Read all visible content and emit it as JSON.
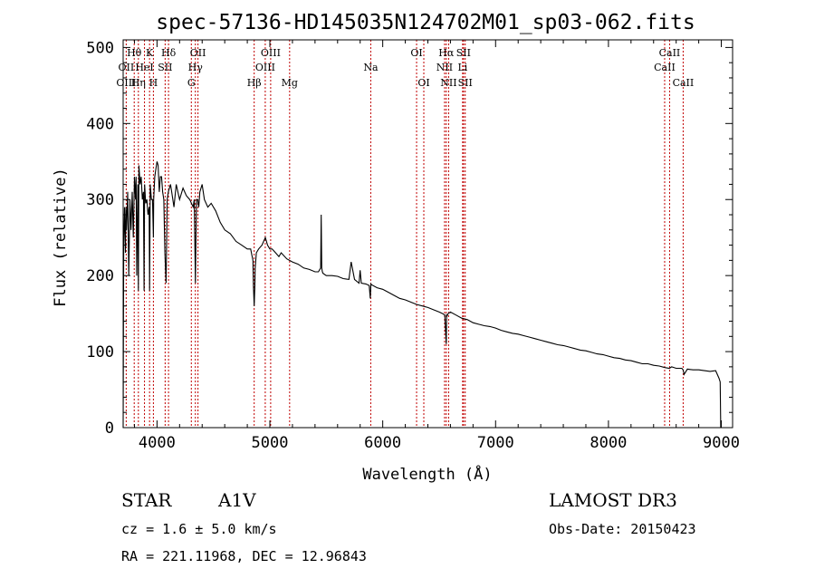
{
  "chart_data": {
    "type": "line",
    "title": "spec-57136-HD145035N124702M01_sp03-062.fits",
    "xlabel": "Wavelength (Å)",
    "ylabel": "Flux (relative)",
    "xlim": [
      3700,
      9100
    ],
    "ylim": [
      0,
      510
    ],
    "x_ticks": [
      4000,
      5000,
      6000,
      7000,
      8000,
      9000
    ],
    "y_ticks": [
      0,
      100,
      200,
      300,
      400,
      500
    ],
    "series": [
      {
        "name": "spectrum",
        "x": [
          3700,
          3705,
          3712,
          3720,
          3725,
          3730,
          3740,
          3750,
          3760,
          3770,
          3780,
          3790,
          3800,
          3810,
          3815,
          3820,
          3830,
          3835,
          3840,
          3850,
          3860,
          3870,
          3880,
          3885,
          3890,
          3900,
          3910,
          3920,
          3930,
          3934,
          3940,
          3950,
          3960,
          3968,
          3970,
          3980,
          3990,
          4000,
          4010,
          4020,
          4030,
          4040,
          4050,
          4060,
          4070,
          4080,
          4090,
          4100,
          4110,
          4120,
          4130,
          4150,
          4170,
          4200,
          4230,
          4260,
          4290,
          4320,
          4330,
          4340,
          4345,
          4350,
          4360,
          4370,
          4380,
          4400,
          4420,
          4450,
          4480,
          4520,
          4560,
          4600,
          4650,
          4700,
          4750,
          4800,
          4830,
          4850,
          4855,
          4861,
          4867,
          4870,
          4880,
          4900,
          4930,
          4960,
          4980,
          5000,
          5020,
          5050,
          5080,
          5100,
          5150,
          5200,
          5250,
          5300,
          5350,
          5400,
          5430,
          5450,
          5455,
          5460,
          5465,
          5470,
          5500,
          5550,
          5600,
          5650,
          5700,
          5720,
          5750,
          5790,
          5800,
          5810,
          5850,
          5880,
          5890,
          5895,
          5900,
          5950,
          6000,
          6050,
          6100,
          6150,
          6200,
          6250,
          6300,
          6350,
          6400,
          6450,
          6500,
          6530,
          6550,
          6560,
          6563,
          6566,
          6570,
          6580,
          6600,
          6650,
          6700,
          6750,
          6800,
          6850,
          6900,
          6950,
          7000,
          7050,
          7100,
          7150,
          7200,
          7250,
          7300,
          7350,
          7400,
          7450,
          7500,
          7550,
          7600,
          7650,
          7700,
          7750,
          7800,
          7850,
          7900,
          7950,
          8000,
          8050,
          8100,
          8150,
          8200,
          8250,
          8300,
          8350,
          8400,
          8450,
          8500,
          8540,
          8560,
          8600,
          8650,
          8662,
          8670,
          8700,
          8750,
          8800,
          8850,
          8900,
          8950,
          8980,
          8990,
          8995
        ],
        "values": [
          0,
          240,
          290,
          230,
          290,
          260,
          310,
          200,
          300,
          260,
          310,
          250,
          330,
          300,
          330,
          200,
          320,
          180,
          345,
          320,
          330,
          300,
          310,
          180,
          320,
          295,
          300,
          280,
          290,
          180,
          320,
          300,
          300,
          250,
          300,
          330,
          340,
          350,
          345,
          310,
          330,
          330,
          310,
          300,
          230,
          190,
          300,
          310,
          315,
          320,
          310,
          290,
          320,
          300,
          315,
          305,
          300,
          290,
          300,
          190,
          250,
          300,
          300,
          290,
          310,
          320,
          300,
          290,
          295,
          285,
          270,
          260,
          255,
          245,
          240,
          235,
          235,
          220,
          185,
          160,
          185,
          210,
          230,
          235,
          240,
          250,
          240,
          235,
          235,
          230,
          225,
          230,
          222,
          218,
          215,
          210,
          208,
          205,
          205,
          210,
          280,
          210,
          205,
          203,
          200,
          200,
          199,
          196,
          195,
          218,
          195,
          190,
          207,
          190,
          189,
          187,
          170,
          189,
          188,
          184,
          182,
          178,
          174,
          170,
          168,
          165,
          162,
          160,
          158,
          155,
          152,
          150,
          148,
          120,
          110,
          148,
          147,
          150,
          152,
          148,
          144,
          142,
          138,
          136,
          134,
          133,
          131,
          128,
          126,
          124,
          123,
          121,
          119,
          117,
          115,
          113,
          111,
          109,
          108,
          106,
          104,
          102,
          101,
          99,
          97,
          96,
          94,
          92,
          91,
          89,
          88,
          86,
          84,
          84,
          82,
          81,
          79,
          78,
          80,
          78,
          78,
          76,
          70,
          77,
          76,
          76,
          75,
          74,
          75,
          65,
          60,
          0
        ]
      }
    ],
    "lines_top": [
      {
        "label": "Hθ",
        "x": 3798,
        "row": 1
      },
      {
        "label": "OII",
        "x": 3727,
        "row": 2
      },
      {
        "label": "OIII",
        "x": 3727,
        "row": 3
      },
      {
        "label": "Hη",
        "x": 3835,
        "row": 3
      },
      {
        "label": "K",
        "x": 3934,
        "row": 1
      },
      {
        "label": "HeI",
        "x": 3889,
        "row": 2
      },
      {
        "label": "H",
        "x": 3968,
        "row": 3
      },
      {
        "label": "Hδ",
        "x": 4102,
        "row": 1
      },
      {
        "label": "SII",
        "x": 4072,
        "row": 2
      },
      {
        "label": "OII",
        "x": 4363,
        "row": 1
      },
      {
        "label": "Hγ",
        "x": 4340,
        "row": 2
      },
      {
        "label": "G",
        "x": 4304,
        "row": 3
      },
      {
        "label": "OIII",
        "x": 5007,
        "row": 1
      },
      {
        "label": "OIII",
        "x": 4959,
        "row": 2
      },
      {
        "label": "Hβ",
        "x": 4861,
        "row": 3
      },
      {
        "label": "Mg",
        "x": 5175,
        "row": 3
      },
      {
        "label": "Na",
        "x": 5894,
        "row": 2
      },
      {
        "label": "OI",
        "x": 6300,
        "row": 1
      },
      {
        "label": "OI",
        "x": 6364,
        "row": 3
      },
      {
        "label": "Hα",
        "x": 6563,
        "row": 1
      },
      {
        "label": "SII",
        "x": 6716,
        "row": 1
      },
      {
        "label": "NII",
        "x": 6548,
        "row": 2
      },
      {
        "label": "Li",
        "x": 6708,
        "row": 2
      },
      {
        "label": "NII",
        "x": 6584,
        "row": 3
      },
      {
        "label": "SII",
        "x": 6731,
        "row": 3
      },
      {
        "label": "CaII",
        "x": 8542,
        "row": 1
      },
      {
        "label": "CaII",
        "x": 8498,
        "row": 2
      },
      {
        "label": "CaII",
        "x": 8662,
        "row": 3
      }
    ]
  },
  "footer": {
    "object_class": "STAR",
    "subclass": "A1V",
    "survey": "LAMOST DR3",
    "cz": "cz = 1.6 ± 5.0 km/s",
    "obs_date": "Obs-Date: 20150423",
    "coords": "RA = 221.11968, DEC =  12.96843"
  }
}
